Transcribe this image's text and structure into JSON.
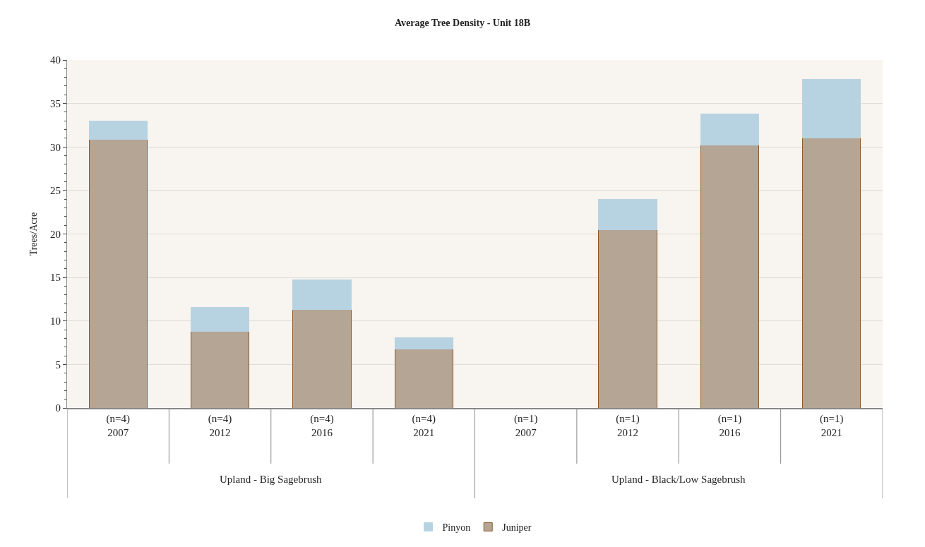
{
  "chart_data": {
    "type": "bar",
    "title": "Average Tree Density - Unit 18B",
    "ylabel": "Trees/Acre",
    "categories": [
      "(n=4)\n2007",
      "(n=4)\n2012",
      "(n=4)\n2016",
      "(n=4)\n2021",
      "(n=1)\n2007",
      "(n=1)\n2012",
      "(n=1)\n2016",
      "(n=1)\n2021"
    ],
    "series": [
      {
        "name": "Juniper",
        "color": "#b5a595",
        "values": [
          30.9,
          8.8,
          11.3,
          6.8,
          0,
          20.5,
          30.2,
          31.0
        ]
      },
      {
        "name": "Pinyon",
        "color": "#b7d3e2",
        "values": [
          2.1,
          2.8,
          3.4,
          1.3,
          0,
          3.5,
          3.6,
          6.8
        ]
      }
    ],
    "stacked": true,
    "ylim": [
      0,
      40
    ],
    "yticks": [
      0,
      5,
      10,
      15,
      20,
      25,
      30,
      35,
      40
    ],
    "grid": "y",
    "legend": "bottom",
    "annotations": [
      "Upland - Big Sagebrush",
      "Upland - Black/Low Sagebrush"
    ]
  }
}
